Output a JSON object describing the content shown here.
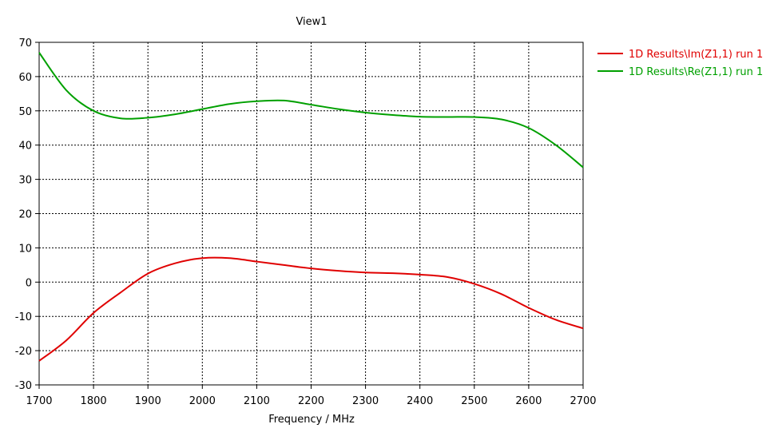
{
  "chart_data": {
    "type": "line",
    "title": "View1",
    "xlabel": "Frequency / MHz",
    "ylabel": "",
    "xlim": [
      1700,
      2700
    ],
    "ylim": [
      -30,
      70
    ],
    "grid": true,
    "legend_placement": "top-right outside plot",
    "x_ticks": [
      1700,
      1800,
      1900,
      2000,
      2100,
      2200,
      2300,
      2400,
      2500,
      2600,
      2700
    ],
    "y_ticks": [
      70,
      60,
      50,
      40,
      30,
      20,
      10,
      0,
      -10,
      -20,
      -30
    ],
    "series": [
      {
        "name": "1D Results\\Im(Z1,1) run 1",
        "color": "#e00000",
        "points": [
          [
            1700,
            -23
          ],
          [
            1750,
            -17
          ],
          [
            1800,
            -9
          ],
          [
            1850,
            -3
          ],
          [
            1900,
            2.5
          ],
          [
            1950,
            5.5
          ],
          [
            2000,
            7
          ],
          [
            2050,
            7
          ],
          [
            2100,
            6
          ],
          [
            2150,
            5
          ],
          [
            2200,
            4
          ],
          [
            2250,
            3.3
          ],
          [
            2300,
            2.8
          ],
          [
            2350,
            2.6
          ],
          [
            2400,
            2.2
          ],
          [
            2450,
            1.5
          ],
          [
            2500,
            -0.5
          ],
          [
            2550,
            -3.5
          ],
          [
            2600,
            -7.5
          ],
          [
            2650,
            -11
          ],
          [
            2700,
            -13.5
          ]
        ]
      },
      {
        "name": "1D Results\\Re(Z1,1) run 1",
        "color": "#00a000",
        "points": [
          [
            1700,
            67
          ],
          [
            1750,
            56
          ],
          [
            1800,
            50
          ],
          [
            1850,
            47.8
          ],
          [
            1900,
            48
          ],
          [
            1950,
            49
          ],
          [
            2000,
            50.5
          ],
          [
            2050,
            52
          ],
          [
            2100,
            52.8
          ],
          [
            2150,
            53
          ],
          [
            2200,
            51.8
          ],
          [
            2250,
            50.5
          ],
          [
            2300,
            49.5
          ],
          [
            2350,
            48.8
          ],
          [
            2400,
            48.3
          ],
          [
            2450,
            48.2
          ],
          [
            2500,
            48.2
          ],
          [
            2550,
            47.5
          ],
          [
            2600,
            45
          ],
          [
            2650,
            40
          ],
          [
            2700,
            33.5
          ]
        ]
      }
    ]
  }
}
